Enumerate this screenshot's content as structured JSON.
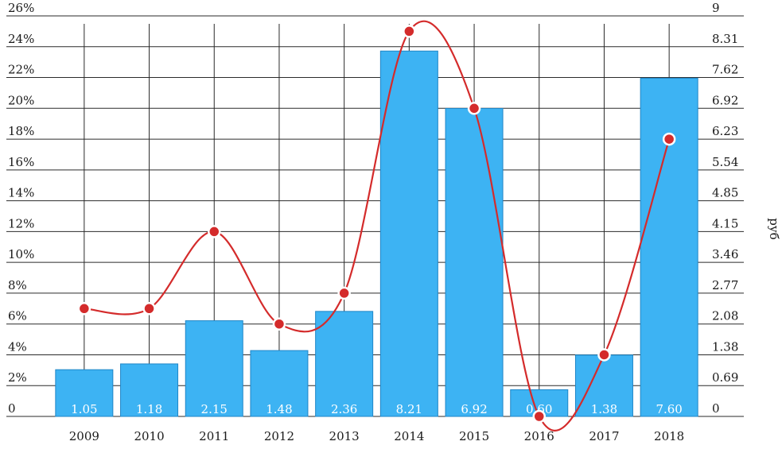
{
  "chart_data": {
    "type": "bar",
    "categories": [
      "2009",
      "2010",
      "2011",
      "2012",
      "2013",
      "2014",
      "2015",
      "2016",
      "2017",
      "2018"
    ],
    "series": [
      {
        "kind": "bar",
        "axis": "right",
        "values": [
          1.05,
          1.18,
          2.15,
          1.48,
          2.36,
          8.21,
          6.92,
          0.6,
          1.38,
          7.6
        ],
        "color": "#3db3f3",
        "data_labels": [
          "1.05",
          "1.18",
          "2.15",
          "1.48",
          "2.36",
          "8.21",
          "6.92",
          "0.60",
          "1.38",
          "7.60"
        ]
      },
      {
        "kind": "line",
        "axis": "left",
        "values": [
          7.0,
          7.0,
          12.0,
          6.0,
          8.0,
          25.0,
          20.0,
          0.0,
          4.0,
          18.0
        ],
        "color": "#d42b2b"
      }
    ],
    "y_left": {
      "ticks": [
        "0",
        "2%",
        "4%",
        "6%",
        "8%",
        "10%",
        "12%",
        "14%",
        "16%",
        "18%",
        "20%",
        "22%",
        "24%",
        "26%"
      ],
      "ylim": [
        0,
        26
      ]
    },
    "y_right": {
      "label": "руб",
      "ticks": [
        "0",
        "0.69",
        "1.38",
        "2.08",
        "2.77",
        "3.46",
        "4.15",
        "4.85",
        "5.54",
        "6.23",
        "6.92",
        "7.62",
        "8.31",
        "9"
      ],
      "ylim": [
        0,
        9
      ]
    },
    "grid": true,
    "legend": "none"
  }
}
